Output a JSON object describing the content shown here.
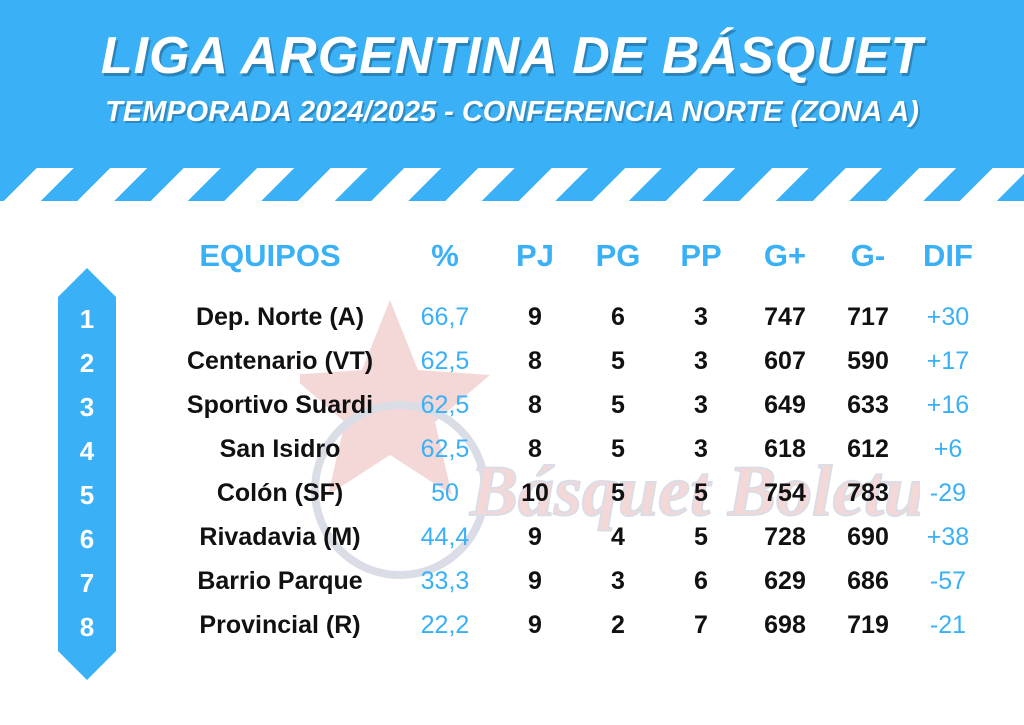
{
  "header": {
    "title": "LIGA ARGENTINA DE BÁSQUET",
    "subtitle": "TEMPORADA 2024/2025 - CONFERENCIA NORTE (ZONA A)"
  },
  "colors": {
    "accent": "#3ab0f7",
    "text": "#111111",
    "background": "#ffffff"
  },
  "table": {
    "headers": [
      "EQUIPOS",
      "%",
      "PJ",
      "PG",
      "PP",
      "G+",
      "G-",
      "DIF"
    ],
    "rows": [
      {
        "rank": "1",
        "team": "Dep. Norte (A)",
        "pct": "66,7",
        "pj": "9",
        "pg": "6",
        "pp": "3",
        "gf": "747",
        "gc": "717",
        "dif": "+30"
      },
      {
        "rank": "2",
        "team": "Centenario (VT)",
        "pct": "62,5",
        "pj": "8",
        "pg": "5",
        "pp": "3",
        "gf": "607",
        "gc": "590",
        "dif": "+17"
      },
      {
        "rank": "3",
        "team": "Sportivo Suardi",
        "pct": "62,5",
        "pj": "8",
        "pg": "5",
        "pp": "3",
        "gf": "649",
        "gc": "633",
        "dif": "+16"
      },
      {
        "rank": "4",
        "team": "San Isidro",
        "pct": "62,5",
        "pj": "8",
        "pg": "5",
        "pp": "3",
        "gf": "618",
        "gc": "612",
        "dif": "+6"
      },
      {
        "rank": "5",
        "team": "Colón (SF)",
        "pct": "50",
        "pj": "10",
        "pg": "5",
        "pp": "5",
        "gf": "754",
        "gc": "783",
        "dif": "-29"
      },
      {
        "rank": "6",
        "team": "Rivadavia (M)",
        "pct": "44,4",
        "pj": "9",
        "pg": "4",
        "pp": "5",
        "gf": "728",
        "gc": "690",
        "dif": "+38"
      },
      {
        "rank": "7",
        "team": "Barrio Parque",
        "pct": "33,3",
        "pj": "9",
        "pg": "3",
        "pp": "6",
        "gf": "629",
        "gc": "686",
        "dif": "-57"
      },
      {
        "rank": "8",
        "team": "Provincial (R)",
        "pct": "22,2",
        "pj": "9",
        "pg": "2",
        "pp": "7",
        "gf": "698",
        "gc": "719",
        "dif": "-21"
      }
    ]
  },
  "watermark": {
    "text": "Básquet Boletunes"
  }
}
